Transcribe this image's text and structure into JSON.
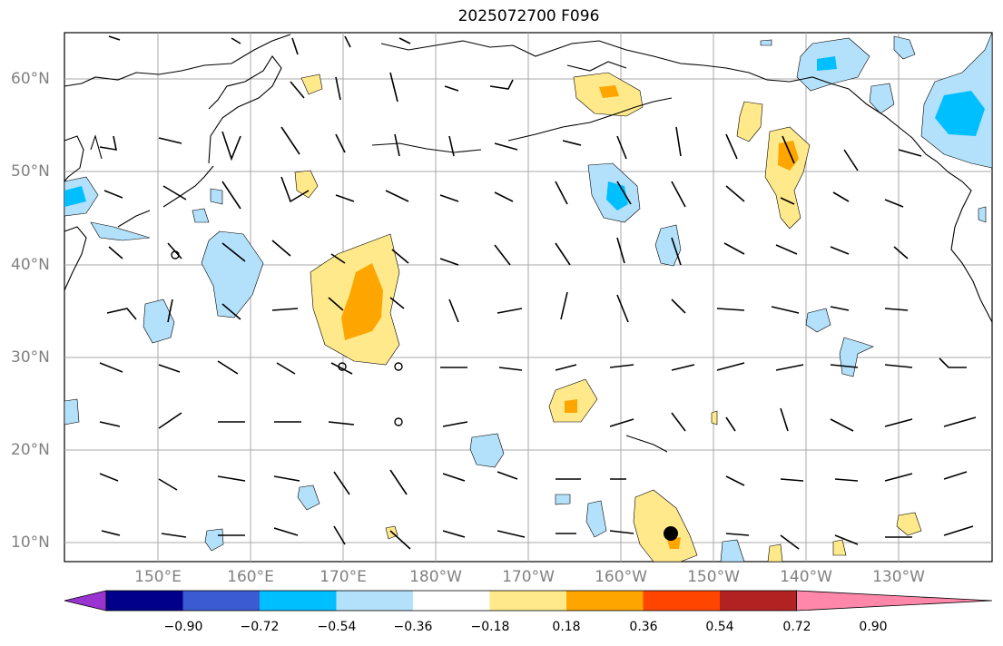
{
  "title": "2025072700 F096",
  "lat_labels": [
    "60°N",
    "50°N",
    "40°N",
    "30°N",
    "20°N",
    "10°N"
  ],
  "lon_labels": [
    "150°E",
    "160°E",
    "170°E",
    "180°W",
    "170°W",
    "160°W",
    "150°W",
    "140°W",
    "130°W"
  ],
  "colorbar": {
    "ticks": [
      "−0.90",
      "−0.72",
      "−0.54",
      "−0.36",
      "−0.18",
      "0.18",
      "0.36",
      "0.54",
      "0.72",
      "0.90"
    ],
    "colors": [
      "#9a34d1",
      "#00008b",
      "#3a5bd1",
      "#00bfff",
      "#b3e0fa",
      "#ffffff",
      "#ffe98a",
      "#ffa500",
      "#ff4500",
      "#b22222",
      "#ff88aa"
    ]
  },
  "colors": {
    "land_lines": "#000000",
    "grid": "#a0a0a0",
    "contour": "#000000"
  },
  "marker": "storm-center-dot"
}
